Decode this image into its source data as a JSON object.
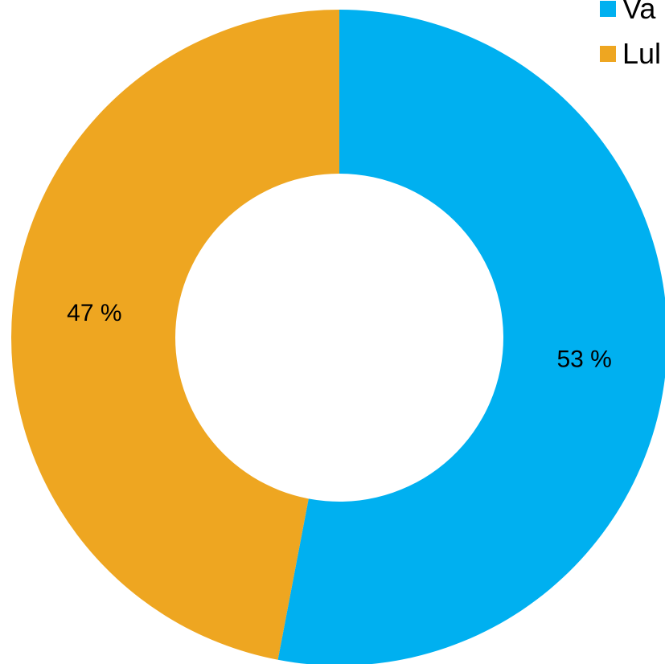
{
  "chart_data": {
    "type": "pie",
    "donut": true,
    "title": "",
    "categories": [
      "Va",
      "Lul"
    ],
    "values": [
      53,
      47
    ],
    "labels": [
      "53 %",
      "47 %"
    ],
    "colors": [
      "#00b0f0",
      "#eea621"
    ],
    "legend": {
      "position": "top-right",
      "items": [
        {
          "label": "Va",
          "color": "#00b0f0"
        },
        {
          "label": "Lul",
          "color": "#eea621"
        }
      ]
    }
  }
}
